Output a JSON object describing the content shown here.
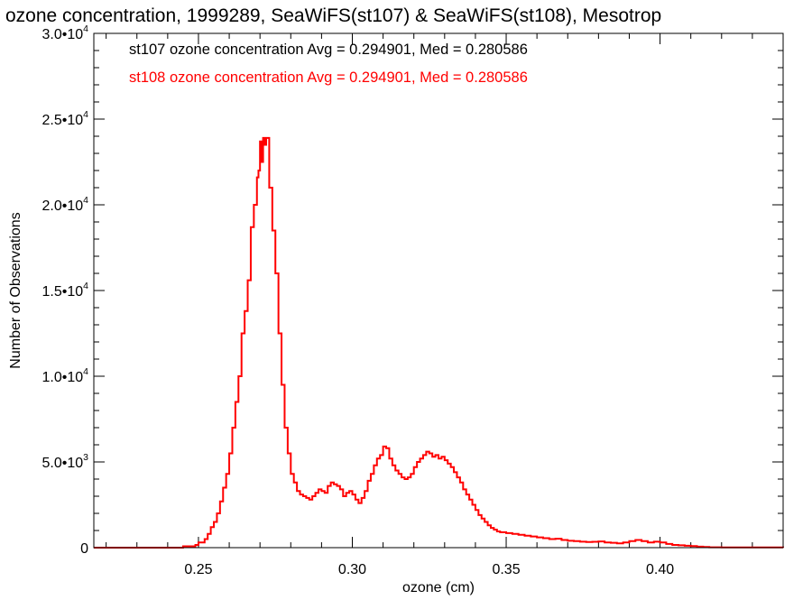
{
  "chart_data": {
    "type": "line",
    "title": "ozone concentration, 1999289, SeaWiFS(st107) & SeaWiFS(st108), Mesotrop",
    "xlabel": "ozone (cm)",
    "ylabel": "Number of Observations",
    "xlim": [
      0.216,
      0.44
    ],
    "ylim": [
      0,
      30000
    ],
    "x_ticks": [
      {
        "value": 0.25,
        "label": "0.25"
      },
      {
        "value": 0.3,
        "label": "0.30"
      },
      {
        "value": 0.35,
        "label": "0.35"
      },
      {
        "value": 0.4,
        "label": "0.40"
      }
    ],
    "y_ticks": [
      {
        "value": 0,
        "mantissa": "0",
        "exp": ""
      },
      {
        "value": 5000,
        "mantissa": "5.0•10",
        "exp": "3"
      },
      {
        "value": 10000,
        "mantissa": "1.0•10",
        "exp": "4"
      },
      {
        "value": 15000,
        "mantissa": "1.5•10",
        "exp": "4"
      },
      {
        "value": 20000,
        "mantissa": "2.0•10",
        "exp": "4"
      },
      {
        "value": 25000,
        "mantissa": "2.5•10",
        "exp": "4"
      },
      {
        "value": 30000,
        "mantissa": "3.0•10",
        "exp": "4"
      }
    ],
    "grid": false,
    "annotations": [
      {
        "text": "st107 ozone concentration Avg = 0.294901, Med = 0.280586",
        "color": "#000000"
      },
      {
        "text": "st108 ozone concentration Avg = 0.294901, Med = 0.280586",
        "color": "#ff0000"
      }
    ],
    "series": [
      {
        "name": "st108",
        "color": "#ff0000",
        "step": true,
        "points": [
          [
            0.216,
            0
          ],
          [
            0.235,
            0
          ],
          [
            0.245,
            80
          ],
          [
            0.249,
            160
          ],
          [
            0.25,
            300
          ],
          [
            0.252,
            500
          ],
          [
            0.253,
            800
          ],
          [
            0.254,
            1200
          ],
          [
            0.255,
            1500
          ],
          [
            0.256,
            2000
          ],
          [
            0.257,
            2700
          ],
          [
            0.258,
            3500
          ],
          [
            0.259,
            4300
          ],
          [
            0.26,
            5500
          ],
          [
            0.261,
            7000
          ],
          [
            0.262,
            8500
          ],
          [
            0.263,
            10000
          ],
          [
            0.264,
            12500
          ],
          [
            0.265,
            13800
          ],
          [
            0.266,
            15600
          ],
          [
            0.267,
            18700
          ],
          [
            0.268,
            20000
          ],
          [
            0.269,
            21600
          ],
          [
            0.2695,
            22000
          ],
          [
            0.27,
            23700
          ],
          [
            0.2705,
            22500
          ],
          [
            0.271,
            23900
          ],
          [
            0.2715,
            23500
          ],
          [
            0.272,
            23900
          ],
          [
            0.273,
            21000
          ],
          [
            0.274,
            18500
          ],
          [
            0.275,
            16000
          ],
          [
            0.276,
            12500
          ],
          [
            0.277,
            9500
          ],
          [
            0.278,
            7000
          ],
          [
            0.279,
            5500
          ],
          [
            0.28,
            4300
          ],
          [
            0.281,
            3800
          ],
          [
            0.282,
            3300
          ],
          [
            0.283,
            3100
          ],
          [
            0.284,
            3000
          ],
          [
            0.285,
            2900
          ],
          [
            0.286,
            2800
          ],
          [
            0.287,
            3000
          ],
          [
            0.288,
            3200
          ],
          [
            0.289,
            3400
          ],
          [
            0.29,
            3300
          ],
          [
            0.291,
            3200
          ],
          [
            0.292,
            3600
          ],
          [
            0.293,
            3800
          ],
          [
            0.294,
            3700
          ],
          [
            0.295,
            3600
          ],
          [
            0.296,
            3400
          ],
          [
            0.297,
            3000
          ],
          [
            0.298,
            3200
          ],
          [
            0.299,
            3300
          ],
          [
            0.3,
            3100
          ],
          [
            0.301,
            2800
          ],
          [
            0.302,
            2600
          ],
          [
            0.303,
            2900
          ],
          [
            0.304,
            3300
          ],
          [
            0.305,
            3900
          ],
          [
            0.306,
            4300
          ],
          [
            0.307,
            4800
          ],
          [
            0.308,
            5200
          ],
          [
            0.309,
            5400
          ],
          [
            0.31,
            5900
          ],
          [
            0.311,
            5800
          ],
          [
            0.312,
            5200
          ],
          [
            0.313,
            4800
          ],
          [
            0.314,
            4500
          ],
          [
            0.315,
            4300
          ],
          [
            0.316,
            4100
          ],
          [
            0.317,
            4000
          ],
          [
            0.318,
            4100
          ],
          [
            0.319,
            4300
          ],
          [
            0.32,
            4700
          ],
          [
            0.321,
            5000
          ],
          [
            0.322,
            5200
          ],
          [
            0.323,
            5400
          ],
          [
            0.324,
            5600
          ],
          [
            0.325,
            5500
          ],
          [
            0.326,
            5300
          ],
          [
            0.327,
            5400
          ],
          [
            0.328,
            5200
          ],
          [
            0.329,
            5300
          ],
          [
            0.33,
            5100
          ],
          [
            0.331,
            4900
          ],
          [
            0.332,
            4700
          ],
          [
            0.333,
            4400
          ],
          [
            0.334,
            4100
          ],
          [
            0.335,
            3800
          ],
          [
            0.336,
            3400
          ],
          [
            0.337,
            3100
          ],
          [
            0.338,
            2800
          ],
          [
            0.339,
            2500
          ],
          [
            0.34,
            2200
          ],
          [
            0.341,
            1900
          ],
          [
            0.342,
            1700
          ],
          [
            0.343,
            1500
          ],
          [
            0.344,
            1300
          ],
          [
            0.345,
            1150
          ],
          [
            0.346,
            1050
          ],
          [
            0.347,
            950
          ],
          [
            0.348,
            900
          ],
          [
            0.35,
            850
          ],
          [
            0.352,
            800
          ],
          [
            0.354,
            750
          ],
          [
            0.356,
            700
          ],
          [
            0.358,
            650
          ],
          [
            0.36,
            600
          ],
          [
            0.362,
            550
          ],
          [
            0.364,
            500
          ],
          [
            0.366,
            520
          ],
          [
            0.368,
            450
          ],
          [
            0.37,
            400
          ],
          [
            0.372,
            380
          ],
          [
            0.374,
            350
          ],
          [
            0.376,
            330
          ],
          [
            0.378,
            340
          ],
          [
            0.38,
            360
          ],
          [
            0.382,
            300
          ],
          [
            0.384,
            280
          ],
          [
            0.386,
            250
          ],
          [
            0.388,
            300
          ],
          [
            0.39,
            380
          ],
          [
            0.392,
            450
          ],
          [
            0.394,
            380
          ],
          [
            0.396,
            300
          ],
          [
            0.398,
            350
          ],
          [
            0.4,
            300
          ],
          [
            0.402,
            220
          ],
          [
            0.404,
            160
          ],
          [
            0.406,
            140
          ],
          [
            0.408,
            110
          ],
          [
            0.41,
            90
          ],
          [
            0.412,
            60
          ],
          [
            0.414,
            40
          ],
          [
            0.416,
            20
          ],
          [
            0.42,
            10
          ],
          [
            0.44,
            0
          ]
        ]
      }
    ]
  }
}
